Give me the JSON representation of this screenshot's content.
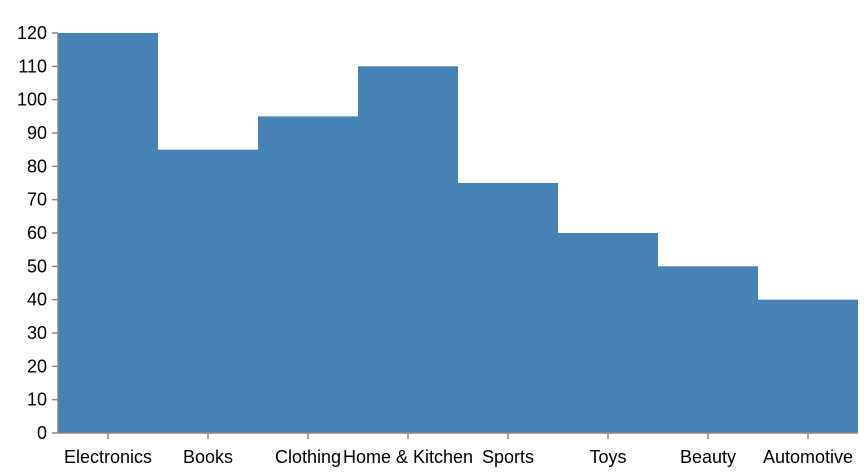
{
  "chart_data": {
    "type": "bar",
    "categories": [
      "Electronics",
      "Books",
      "Clothing",
      "Home & Kitchen",
      "Sports",
      "Toys",
      "Beauty",
      "Automotive"
    ],
    "values": [
      120,
      85,
      95,
      110,
      75,
      60,
      50,
      40
    ],
    "ylim": [
      0,
      120
    ],
    "yticks": [
      "0",
      "10",
      "20",
      "30",
      "40",
      "50",
      "60",
      "70",
      "80",
      "90",
      "100",
      "110",
      "120"
    ],
    "bar_color": "#4682b4",
    "grid": false,
    "legend": "none",
    "bar_padding": 0
  }
}
